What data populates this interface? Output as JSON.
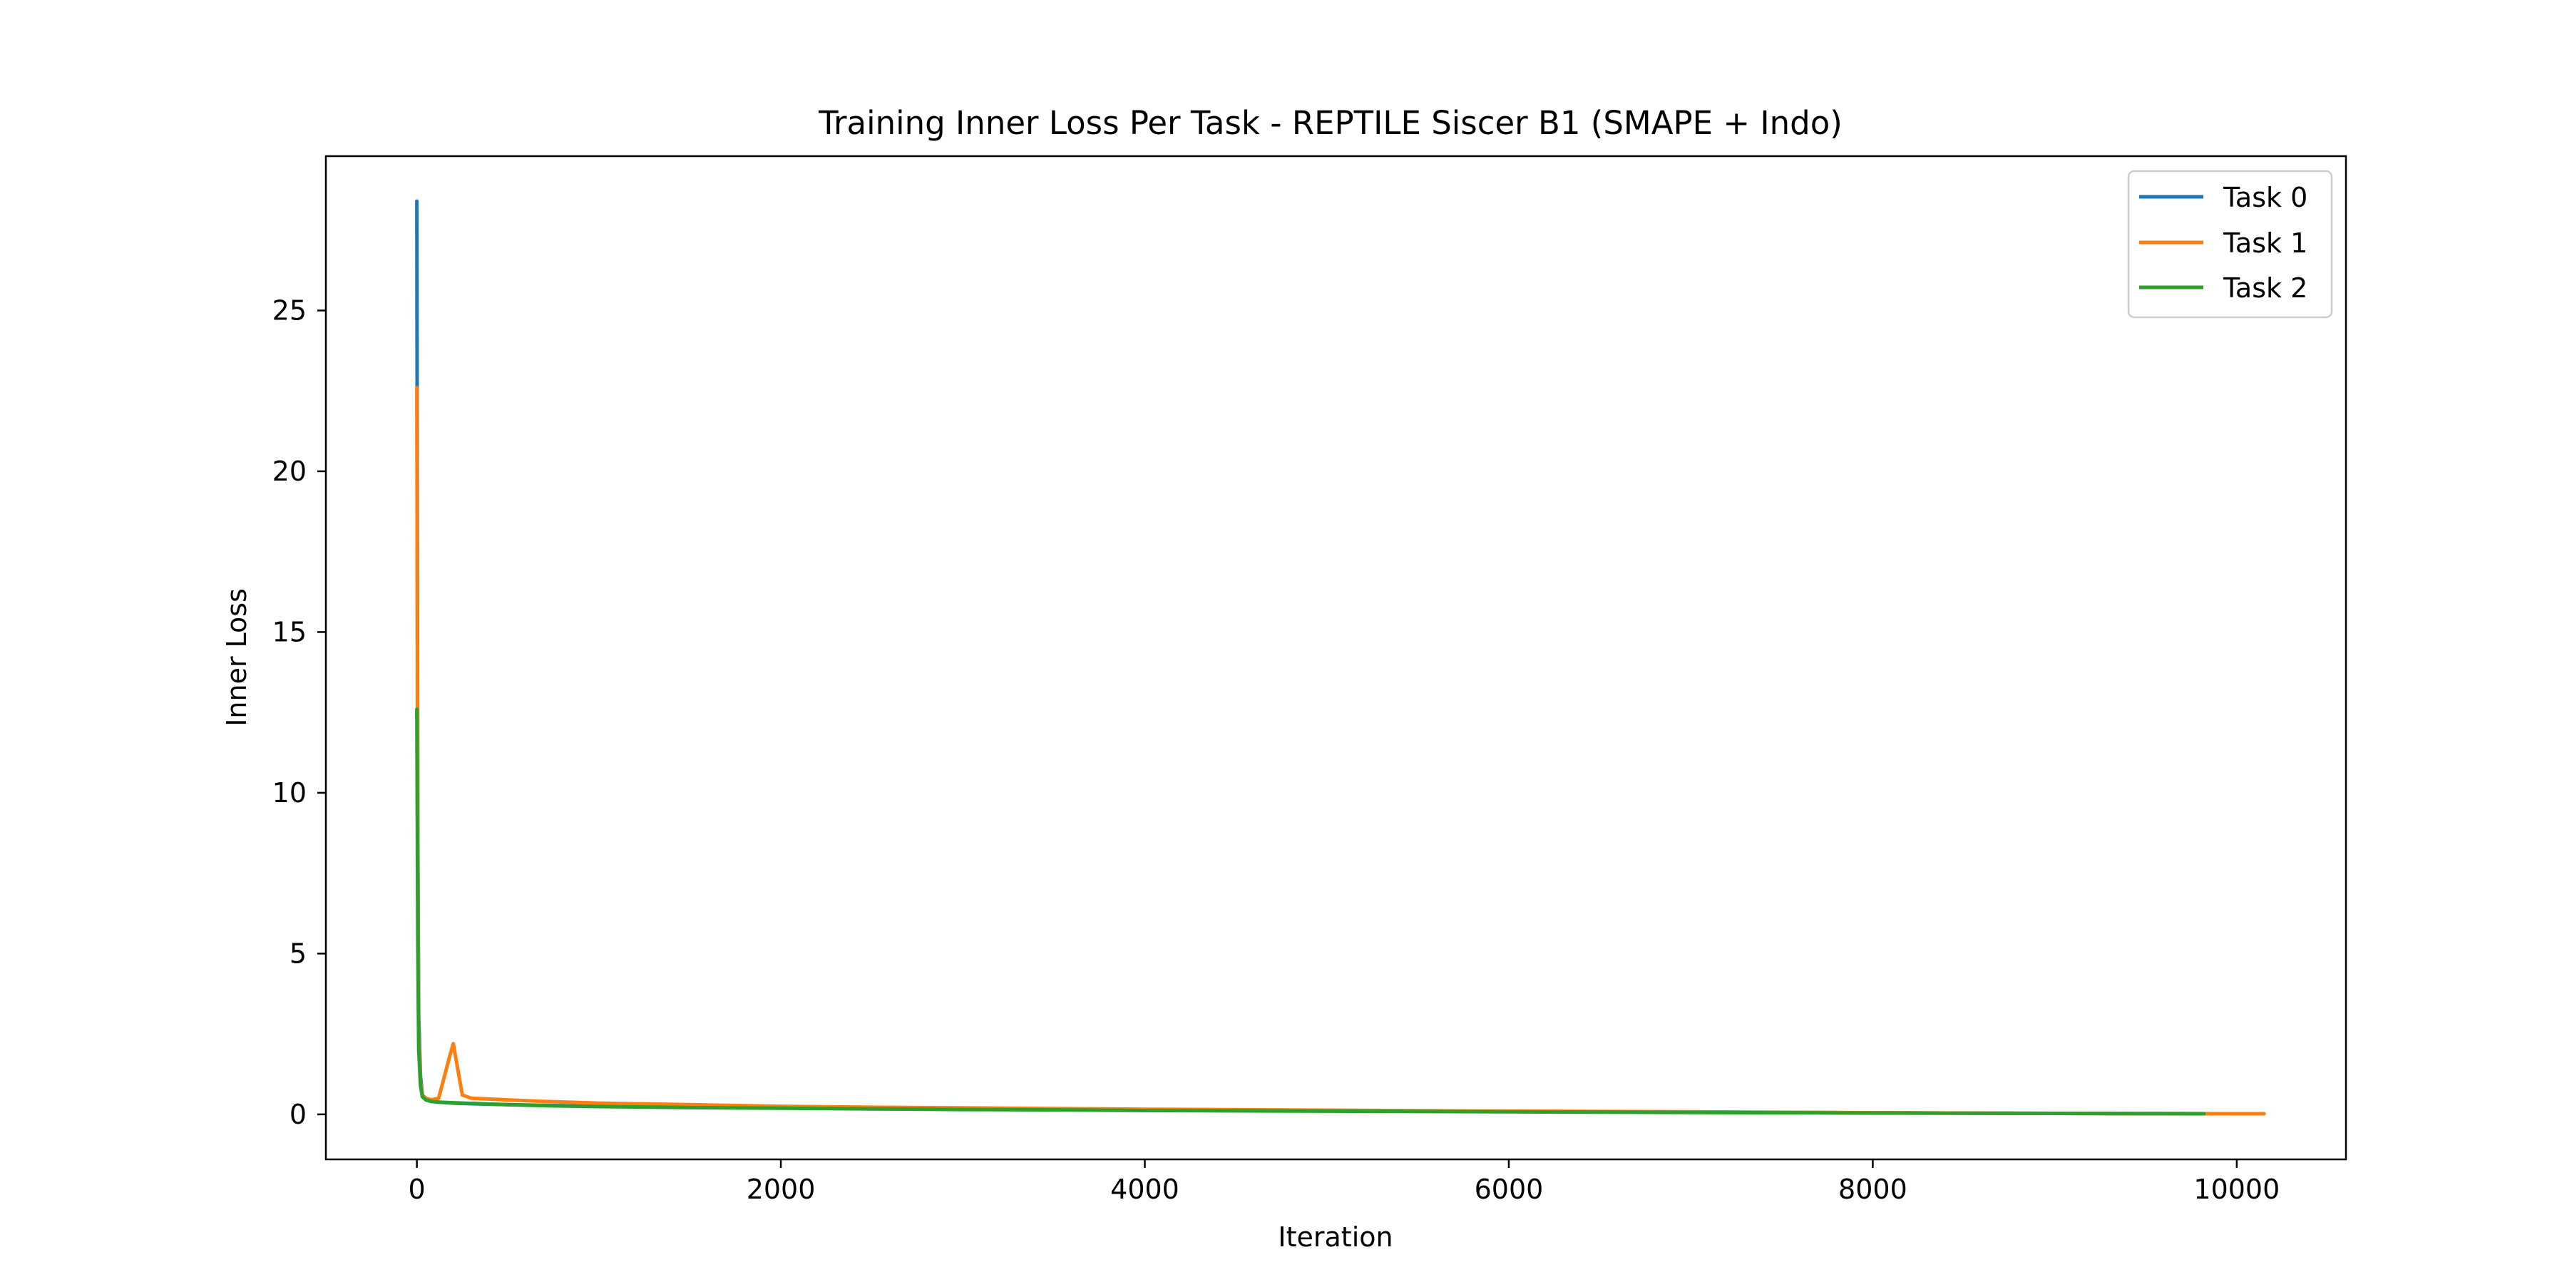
{
  "chart_data": {
    "type": "line",
    "title": "Training Inner Loss Per Task - REPTILE Siscer B1 (SMAPE + Indo)",
    "xlabel": "Iteration",
    "ylabel": "Inner Loss",
    "xlim": [
      -500,
      10600
    ],
    "ylim": [
      -1.4,
      29.8
    ],
    "xticks": [
      0,
      2000,
      4000,
      6000,
      8000,
      10000
    ],
    "yticks": [
      0,
      5,
      10,
      15,
      20,
      25
    ],
    "grid": false,
    "legend_position": "top-right",
    "series": [
      {
        "name": "Task 0",
        "color": "#1f77b4",
        "x": [
          0,
          5,
          10,
          20,
          30,
          50,
          80,
          120,
          200,
          300,
          500,
          700,
          1000,
          1500,
          2000,
          2500,
          3000,
          3500,
          4000,
          5000,
          6000,
          7000,
          8000,
          9000,
          9850
        ],
        "y": [
          28.4,
          9.0,
          3.0,
          1.2,
          0.6,
          0.45,
          0.4,
          0.38,
          0.35,
          0.33,
          0.3,
          0.28,
          0.25,
          0.22,
          0.2,
          0.18,
          0.16,
          0.15,
          0.13,
          0.11,
          0.09,
          0.07,
          0.05,
          0.03,
          0.02
        ]
      },
      {
        "name": "Task 1",
        "color": "#ff7f0e",
        "x": [
          0,
          5,
          10,
          20,
          30,
          50,
          80,
          120,
          180,
          200,
          250,
          300,
          500,
          700,
          1000,
          1500,
          2000,
          2500,
          3000,
          3500,
          4000,
          5000,
          6000,
          7000,
          8000,
          9000,
          10000,
          10150
        ],
        "y": [
          22.6,
          7.0,
          2.5,
          1.0,
          0.6,
          0.5,
          0.45,
          0.5,
          1.8,
          2.2,
          0.6,
          0.5,
          0.45,
          0.4,
          0.35,
          0.3,
          0.25,
          0.22,
          0.2,
          0.18,
          0.16,
          0.13,
          0.1,
          0.08,
          0.05,
          0.03,
          0.02,
          0.02
        ]
      },
      {
        "name": "Task 2",
        "color": "#2ca02c",
        "x": [
          0,
          5,
          10,
          20,
          30,
          50,
          80,
          120,
          200,
          300,
          500,
          700,
          1000,
          1500,
          2000,
          2500,
          3000,
          3500,
          4000,
          5000,
          6000,
          7000,
          8000,
          9000,
          9820
        ],
        "y": [
          12.6,
          5.5,
          2.0,
          0.9,
          0.55,
          0.45,
          0.4,
          0.38,
          0.36,
          0.34,
          0.3,
          0.27,
          0.24,
          0.21,
          0.19,
          0.17,
          0.15,
          0.14,
          0.12,
          0.1,
          0.08,
          0.06,
          0.04,
          0.03,
          0.02
        ]
      }
    ]
  }
}
